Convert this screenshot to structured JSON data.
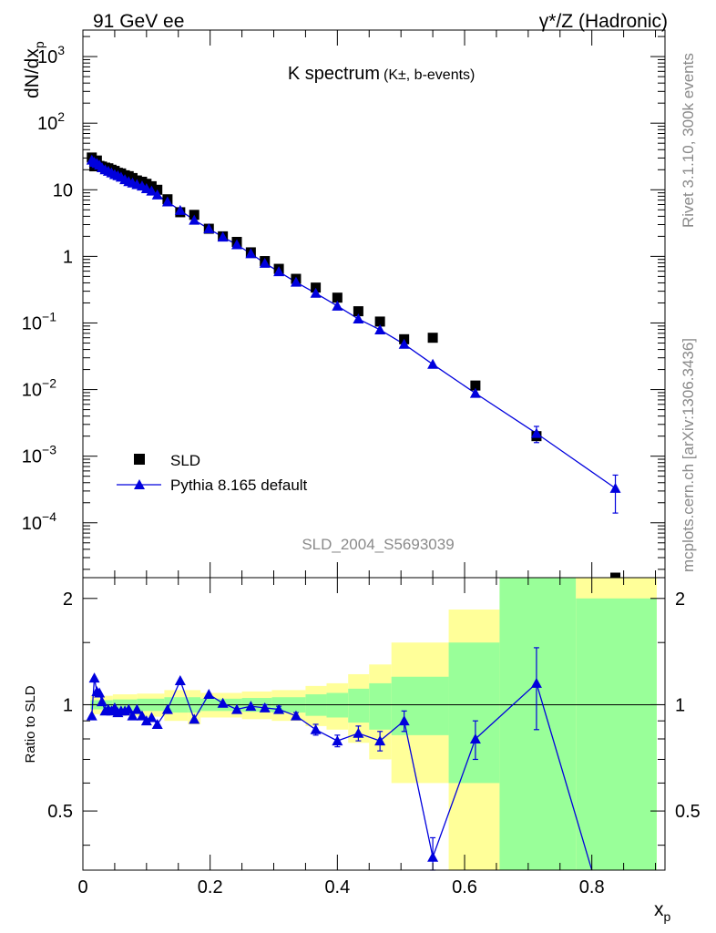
{
  "header": {
    "left": "91 GeV ee",
    "right": "γ*/Z (Hadronic)"
  },
  "side_labels": {
    "rivet": "Rivet 3.1.10,  300k events",
    "mcplots": "mcplots.cern.ch [arXiv:1306.3436]"
  },
  "watermark": "SLD_2004_S5693039",
  "chart_data": [
    {
      "type": "scatter",
      "panel": "main",
      "title": "K spectrum",
      "title_sub": "(K±, b-events)",
      "ylabel": "dN/dx_p",
      "ylabel_main": "dN/dx",
      "ylabel_sub": "p",
      "yscale": "log",
      "ylim": [
        1.5e-05,
        2500
      ],
      "xlim": [
        0,
        0.915
      ],
      "y_ticks": [
        {
          "value": 1000,
          "base": "10",
          "exp": "3"
        },
        {
          "value": 100,
          "base": "10",
          "exp": "2"
        },
        {
          "value": 10,
          "base": "10",
          "exp": ""
        },
        {
          "value": 1,
          "base": "1",
          "exp": ""
        },
        {
          "value": 0.1,
          "base": "10",
          "exp": "−1"
        },
        {
          "value": 0.01,
          "base": "10",
          "exp": "−2"
        },
        {
          "value": 0.001,
          "base": "10",
          "exp": "−3"
        },
        {
          "value": 0.0001,
          "base": "10",
          "exp": "−4"
        }
      ],
      "legend": [
        {
          "label": "SLD",
          "marker": "square",
          "color": "#000000"
        },
        {
          "label": "Pythia 8.165 default",
          "marker": "triangle",
          "color": "#0000dd"
        }
      ],
      "series": [
        {
          "name": "SLD",
          "x": [
            0.014,
            0.018,
            0.022,
            0.026,
            0.03,
            0.035,
            0.04,
            0.045,
            0.05,
            0.055,
            0.06,
            0.066,
            0.072,
            0.078,
            0.085,
            0.093,
            0.1,
            0.108,
            0.117,
            0.133,
            0.153,
            0.175,
            0.198,
            0.22,
            0.242,
            0.264,
            0.286,
            0.308,
            0.335,
            0.366,
            0.4,
            0.433,
            0.467,
            0.505,
            0.55,
            0.617,
            0.713,
            0.837
          ],
          "y": [
            30.5,
            22.5,
            27.5,
            22.8,
            22.3,
            21.5,
            21.0,
            20.0,
            19.2,
            18.0,
            17.6,
            16.5,
            16.0,
            15.0,
            13.8,
            13.2,
            12.3,
            11.3,
            10.0,
            7.2,
            4.6,
            4.2,
            2.6,
            2.0,
            1.65,
            1.15,
            0.85,
            0.65,
            0.46,
            0.34,
            0.24,
            0.15,
            0.105,
            0.057,
            0.06,
            0.0115,
            0.002,
            1.1e-05
          ]
        },
        {
          "name": "Pythia 8.165 default",
          "x": [
            0.014,
            0.018,
            0.022,
            0.026,
            0.03,
            0.035,
            0.04,
            0.045,
            0.05,
            0.055,
            0.06,
            0.066,
            0.072,
            0.078,
            0.085,
            0.093,
            0.1,
            0.108,
            0.117,
            0.133,
            0.153,
            0.175,
            0.198,
            0.22,
            0.242,
            0.264,
            0.286,
            0.308,
            0.335,
            0.366,
            0.4,
            0.433,
            0.467,
            0.505,
            0.55,
            0.617,
            0.713,
            0.837
          ],
          "y": [
            28.0,
            26.0,
            25.0,
            23.5,
            21.5,
            20.0,
            19.0,
            18.0,
            17.0,
            16.3,
            15.5,
            14.2,
            13.3,
            12.7,
            12.0,
            11.4,
            10.4,
            9.6,
            8.4,
            6.6,
            4.9,
            3.5,
            2.6,
            1.95,
            1.5,
            1.1,
            0.79,
            0.59,
            0.41,
            0.28,
            0.18,
            0.115,
            0.079,
            0.048,
            0.024,
            0.0088,
            0.0022,
            0.00033
          ],
          "yerr": [
            0,
            0,
            0,
            0,
            0,
            0,
            0,
            0,
            0,
            0,
            0,
            0,
            0,
            0,
            0,
            0,
            0,
            0,
            0,
            0,
            0,
            0,
            0,
            0,
            0,
            0,
            0,
            0,
            0,
            0,
            0,
            0,
            0,
            0,
            0,
            0,
            0.0006,
            0.00019
          ]
        }
      ]
    },
    {
      "type": "line",
      "panel": "ratio",
      "ylabel": "Ratio to SLD",
      "xlabel": "x_p",
      "xlabel_main": "x",
      "xlabel_sub": "p",
      "ylim": [
        0.34,
        2.29
      ],
      "xlim": [
        0,
        0.915
      ],
      "x_ticks": [
        0,
        0.2,
        0.4,
        0.6,
        0.8
      ],
      "x_tick_labels": [
        "0",
        "0.2",
        "0.4",
        "0.6",
        "0.8"
      ],
      "y_ticks": [
        0.5,
        1,
        2
      ],
      "y_tick_labels": [
        "0.5",
        "1",
        "2"
      ],
      "reference_line": 1,
      "uncertainty_bands": [
        {
          "x0": 0.012,
          "x1": 0.047,
          "inner": [
            0.97,
            1.03
          ],
          "outer": [
            0.94,
            1.06
          ]
        },
        {
          "x0": 0.047,
          "x1": 0.085,
          "inner": [
            0.965,
            1.035
          ],
          "outer": [
            0.93,
            1.07
          ]
        },
        {
          "x0": 0.085,
          "x1": 0.128,
          "inner": [
            0.96,
            1.04
          ],
          "outer": [
            0.925,
            1.075
          ]
        },
        {
          "x0": 0.128,
          "x1": 0.165,
          "inner": [
            0.95,
            1.05
          ],
          "outer": [
            0.9,
            1.1
          ]
        },
        {
          "x0": 0.165,
          "x1": 0.185,
          "inner": [
            0.95,
            1.05
          ],
          "outer": [
            0.88,
            1.1
          ]
        },
        {
          "x0": 0.185,
          "x1": 0.25,
          "inner": [
            0.96,
            1.04
          ],
          "outer": [
            0.92,
            1.08
          ]
        },
        {
          "x0": 0.25,
          "x1": 0.297,
          "inner": [
            0.955,
            1.045
          ],
          "outer": [
            0.91,
            1.09
          ]
        },
        {
          "x0": 0.297,
          "x1": 0.35,
          "inner": [
            0.95,
            1.05
          ],
          "outer": [
            0.9,
            1.1
          ]
        },
        {
          "x0": 0.35,
          "x1": 0.383,
          "inner": [
            0.93,
            1.07
          ],
          "outer": [
            0.87,
            1.13
          ]
        },
        {
          "x0": 0.383,
          "x1": 0.417,
          "inner": [
            0.92,
            1.08
          ],
          "outer": [
            0.85,
            1.15
          ]
        },
        {
          "x0": 0.417,
          "x1": 0.45,
          "inner": [
            0.89,
            1.11
          ],
          "outer": [
            0.78,
            1.22
          ]
        },
        {
          "x0": 0.45,
          "x1": 0.485,
          "inner": [
            0.85,
            1.15
          ],
          "outer": [
            0.7,
            1.3
          ]
        },
        {
          "x0": 0.485,
          "x1": 0.575,
          "inner": [
            0.82,
            1.2
          ],
          "outer": [
            0.6,
            1.5
          ]
        },
        {
          "x0": 0.575,
          "x1": 0.655,
          "inner": [
            0.6,
            1.5
          ],
          "outer": [
            0.34,
            1.86
          ]
        },
        {
          "x0": 0.655,
          "x1": 0.775,
          "inner": [
            0.34,
            2.29
          ],
          "outer": [
            0.34,
            2.29
          ]
        },
        {
          "x0": 0.775,
          "x1": 0.902,
          "inner": [
            0.34,
            2.0
          ],
          "outer": [
            0.34,
            2.29
          ]
        }
      ],
      "series": [
        {
          "name": "Pythia 8.165 default / SLD",
          "x": [
            0.014,
            0.018,
            0.022,
            0.026,
            0.03,
            0.035,
            0.04,
            0.045,
            0.05,
            0.055,
            0.06,
            0.066,
            0.072,
            0.078,
            0.085,
            0.093,
            0.1,
            0.108,
            0.117,
            0.133,
            0.153,
            0.175,
            0.198,
            0.22,
            0.242,
            0.264,
            0.286,
            0.308,
            0.335,
            0.366,
            0.4,
            0.433,
            0.467,
            0.505,
            0.55,
            0.617,
            0.713,
            0.8
          ],
          "y": [
            0.93,
            1.19,
            1.09,
            1.08,
            1.02,
            0.96,
            0.97,
            0.96,
            0.98,
            0.95,
            0.96,
            0.96,
            0.97,
            0.93,
            0.97,
            0.93,
            0.9,
            0.92,
            0.88,
            0.97,
            1.17,
            0.91,
            1.07,
            1.01,
            0.97,
            0.99,
            0.98,
            0.97,
            0.93,
            0.85,
            0.79,
            0.83,
            0.79,
            0.9,
            0.37,
            0.8,
            1.15,
            0.34
          ],
          "yerr": [
            0,
            0,
            0,
            0,
            0,
            0,
            0,
            0,
            0,
            0,
            0,
            0,
            0,
            0,
            0,
            0,
            0,
            0,
            0,
            0,
            0,
            0,
            0,
            0,
            0,
            0,
            0.02,
            0.02,
            0.02,
            0.03,
            0.03,
            0.04,
            0.05,
            0.06,
            0.05,
            0.1,
            0.3,
            0
          ],
          "marker_shown": [
            true,
            true,
            true,
            true,
            true,
            true,
            true,
            true,
            true,
            true,
            true,
            true,
            true,
            true,
            true,
            true,
            true,
            true,
            true,
            true,
            true,
            true,
            true,
            true,
            true,
            true,
            true,
            true,
            true,
            true,
            true,
            true,
            true,
            true,
            true,
            true,
            true,
            false
          ]
        }
      ]
    }
  ],
  "colors": {
    "mc": "#0000dd",
    "data": "#000000",
    "band_inner": "#99ff99",
    "band_outer": "#ffff99"
  }
}
